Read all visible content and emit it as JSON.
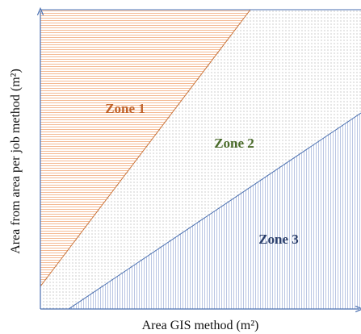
{
  "zones": [
    {
      "label": "Zone 1"
    },
    {
      "label": "Zone 2"
    },
    {
      "label": "Zone 3"
    }
  ],
  "axes": {
    "y_label": "Area from area per job method (m²)",
    "x_label": "Area GIS method (m²)"
  }
}
